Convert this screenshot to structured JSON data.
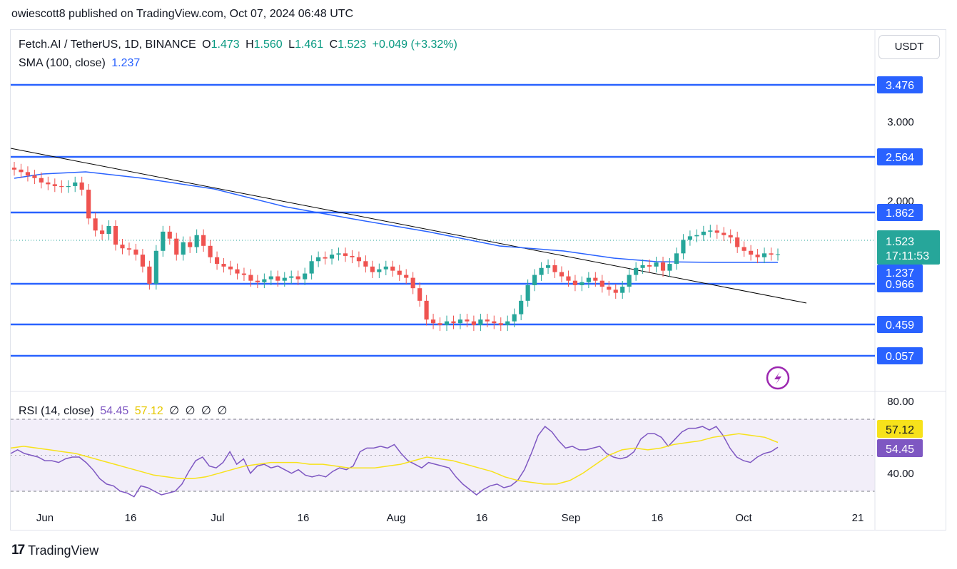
{
  "publisher_line": "owiescott8 published on TradingView.com, Oct 07, 2024 06:48 UTC",
  "header": {
    "symbol": "Fetch.AI / TetherUS, 1D, BINANCE",
    "ohlc": {
      "o_label": "O",
      "o": "1.473",
      "h_label": "H",
      "h": "1.560",
      "l_label": "L",
      "l": "1.461",
      "c_label": "C",
      "c": "1.523",
      "change": "+0.049 (+3.32%)"
    },
    "sma_label": "SMA (100, close)",
    "sma_value": "1.237",
    "currency_button": "USDT"
  },
  "rsi_legend": {
    "label": "RSI (14, close)",
    "rsi_value": "54.45",
    "ma_value": "57.12",
    "empty": [
      "∅",
      "∅",
      "∅",
      "∅"
    ]
  },
  "footer": {
    "brand": "TradingView"
  },
  "colors": {
    "bull": "#26a69a",
    "bear": "#ef5350",
    "sma": "#2962ff",
    "level": "#2962ff",
    "trend": "#000000",
    "rsi": "#7e57c2",
    "rsi_ma": "#f7e21b",
    "price_tag": "#26a69a"
  },
  "chart_data": {
    "type": "candlestick",
    "title": "Fetch.AI / TetherUS, 1D, BINANCE",
    "price_axis": {
      "scale": "log",
      "ticks": [
        "3.000",
        "2.000"
      ]
    },
    "x_ticks": [
      "Jun",
      "16",
      "Jul",
      "16",
      "Aug",
      "16",
      "Sep",
      "16",
      "Oct",
      "21"
    ],
    "horizontal_levels": [
      "3.476",
      "2.564",
      "1.862",
      "0.966",
      "0.459",
      "0.057"
    ],
    "current_price": {
      "value": "1.523",
      "countdown": "17:11:53"
    },
    "sma_tag": "1.237",
    "trendline": {
      "from": [
        "2024-05-27",
        2.58
      ],
      "to": [
        "2024-10-20",
        0.93
      ]
    },
    "candles_daily_close": [
      2.35,
      2.32,
      2.28,
      2.25,
      2.2,
      2.18,
      2.16,
      2.15,
      2.16,
      2.2,
      2.12,
      1.83,
      1.72,
      1.69,
      1.76,
      1.6,
      1.57,
      1.56,
      1.52,
      1.43,
      1.31,
      1.55,
      1.71,
      1.65,
      1.52,
      1.62,
      1.58,
      1.68,
      1.59,
      1.5,
      1.45,
      1.43,
      1.41,
      1.38,
      1.37,
      1.33,
      1.32,
      1.34,
      1.36,
      1.33,
      1.35,
      1.36,
      1.34,
      1.38,
      1.47,
      1.5,
      1.49,
      1.52,
      1.53,
      1.51,
      1.5,
      1.47,
      1.43,
      1.39,
      1.41,
      1.43,
      1.4,
      1.37,
      1.35,
      1.28,
      1.2,
      1.09,
      1.07,
      1.06,
      1.08,
      1.07,
      1.09,
      1.08,
      1.06,
      1.09,
      1.08,
      1.07,
      1.06,
      1.08,
      1.12,
      1.2,
      1.3,
      1.37,
      1.42,
      1.44,
      1.39,
      1.36,
      1.33,
      1.3,
      1.32,
      1.35,
      1.33,
      1.29,
      1.27,
      1.25,
      1.29,
      1.37,
      1.42,
      1.44,
      1.43,
      1.46,
      1.4,
      1.45,
      1.53,
      1.64,
      1.67,
      1.68,
      1.71,
      1.72,
      1.7,
      1.68,
      1.66,
      1.58,
      1.55,
      1.52,
      1.5,
      1.53,
      1.52,
      1.523
    ],
    "sma_100": [
      2.45,
      2.2,
      2.0,
      1.8,
      1.6,
      1.45,
      1.32,
      1.25,
      1.22,
      1.22,
      1.237
    ],
    "rsi": {
      "label": "RSI (14, close)",
      "bands": [
        70,
        30
      ],
      "ticks": [
        "80.00",
        "40.00"
      ],
      "value": 54.45,
      "ma_value": 57.12
    },
    "rsi_values": [
      51,
      53,
      51,
      50,
      49,
      47,
      47,
      46,
      48,
      49,
      49,
      46,
      42,
      37,
      34,
      33,
      30,
      29,
      27,
      33,
      32,
      30,
      28,
      29,
      30,
      34,
      41,
      47,
      49,
      44,
      43,
      46,
      52,
      45,
      48,
      40,
      44,
      45,
      43,
      44,
      42,
      40,
      42,
      39,
      38,
      39,
      38,
      41,
      43,
      42,
      44,
      52,
      54,
      54,
      55,
      54,
      56,
      51,
      47,
      45,
      43,
      46,
      45,
      44,
      43,
      38,
      34,
      31,
      28,
      31,
      33,
      34,
      32,
      33,
      36,
      42,
      51,
      61,
      66,
      63,
      58,
      54,
      55,
      53,
      53,
      54,
      55,
      51,
      49,
      48,
      49,
      52,
      59,
      62,
      62,
      60,
      55,
      59,
      63,
      65,
      65,
      66,
      64,
      66,
      61,
      54,
      49,
      47,
      46,
      49,
      51,
      52,
      54.45
    ],
    "rsi_ma_values": [
      54,
      55,
      54,
      53,
      52,
      51,
      49,
      47,
      45,
      43,
      41,
      39,
      38,
      37,
      37,
      38,
      40,
      42,
      44,
      45,
      46,
      46,
      46,
      45,
      45,
      44,
      43,
      43,
      43,
      44,
      45,
      47,
      49,
      48,
      47,
      45,
      43,
      41,
      38,
      36,
      35,
      34,
      34,
      36,
      40,
      45,
      50,
      53,
      54,
      53,
      54,
      56,
      57,
      58,
      60,
      61,
      62,
      61,
      60,
      57.12
    ]
  }
}
